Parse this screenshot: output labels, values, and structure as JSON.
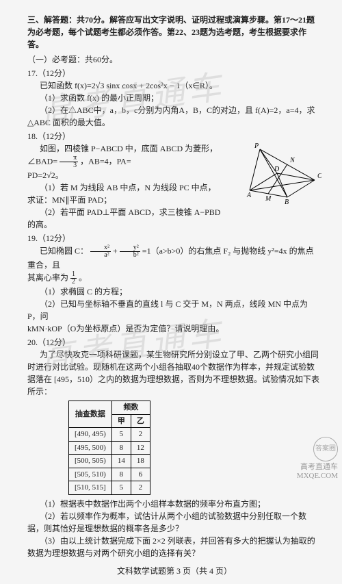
{
  "section3": {
    "heading": "三、解答题：共70分。解答应写出文字说明、证明过程或演算步骤。第17～21题为必考题，每个试题考生都必须作答。第22、23题为选考题，考生根据要求作答。",
    "part1_heading": "（一）必考题：共60分。"
  },
  "q17": {
    "num": "17.（12分）",
    "intro": "已知函数 f(x)=2√3 sinx cosx + 2cos²x − 1（x∈R）。",
    "p1": "（1）求函数 f(x) 的最小正周期；",
    "p2a": "（2）在△ABC中，a，b，c分别为内角A，B，C的对边，且 f(A)=2，a=4，求",
    "p2b": "△ABC 面积的最大值。"
  },
  "q18": {
    "num": "18.（12分）",
    "intro1": "如图，四棱锥 P−ABCD 中，底面 ABCD 为菱形，∠BAD=",
    "intro1_frac_n": "π",
    "intro1_frac_d": "3",
    "intro1b": "，AB=4，PA=",
    "intro2": "PD=2√2。",
    "p1a": "（1）若 M 为线段 AB 中点，N 为线段 PC 中点，",
    "p1b": "求证：MN∥平面 PAD；",
    "p2a": "（2）若平面 PAD⊥平面 ABCD，求三棱锥 A−PBD",
    "p2b": "的高。",
    "diagram": {
      "width": 120,
      "height": 90,
      "points": {
        "A": [
          15,
          70,
          "A"
        ],
        "B": [
          70,
          80,
          "B"
        ],
        "C": [
          110,
          55,
          "C"
        ],
        "D": [
          55,
          45,
          "D"
        ],
        "P": [
          30,
          10,
          "P"
        ],
        "M": [
          42,
          75,
          "M"
        ],
        "N": [
          70,
          32,
          "N"
        ]
      },
      "edges": [
        [
          "A",
          "B"
        ],
        [
          "B",
          "C"
        ],
        [
          "C",
          "D"
        ],
        [
          "D",
          "A"
        ],
        [
          "A",
          "P"
        ],
        [
          "P",
          "D"
        ],
        [
          "P",
          "C"
        ],
        [
          "P",
          "B"
        ],
        [
          "A",
          "C"
        ],
        [
          "B",
          "D"
        ],
        [
          "M",
          "N"
        ]
      ],
      "stroke": "#000"
    }
  },
  "q19": {
    "num": "19.（12分）",
    "intro1": "已知椭圆 C：",
    "ellipse_n": "x²",
    "ellipse_d": "a²",
    "plus": " + ",
    "ellipse2_n": "y²",
    "ellipse2_d": "b²",
    "intro1b": " =1（a>b>0）的右焦点 F₂ 与抛物线 y²=4x 的焦点重合，且",
    "intro2a": "其离心率为 ",
    "ecc_n": "1",
    "ecc_d": "2",
    "intro2b": "。",
    "p1": "（1）求椭圆 C 的方程；",
    "p2a": "（2）已知与坐标轴不垂直的直线 l 与 C 交于 M，N 两点，线段 MN 中点为 P，问",
    "p2b": "kMN·kOP（O为坐标原点）是否为定值？请说明理由。"
  },
  "q20": {
    "num": "20.（12分）",
    "intro1": "为了尽快攻克一项科研课题，某生物研究所分别设立了甲、乙两个研究小组同时进行对比试验。现随机在这两个小组各抽取40个数据作为样本，并规定试验数据落在 [495，510）之内的数据为理想数据，否则为不理想数据。试验情况如下表所示：",
    "table": {
      "header_main": "抽查数据",
      "header_sub": "频数",
      "header_a": "甲",
      "header_b": "乙",
      "rows": [
        {
          "range": "[490, 495)",
          "a": "5",
          "b": "2"
        },
        {
          "range": "[495, 500)",
          "a": "8",
          "b": "12"
        },
        {
          "range": "[500, 505)",
          "a": "14",
          "b": "18"
        },
        {
          "range": "[505, 510)",
          "a": "8",
          "b": "6"
        },
        {
          "range": "[510, 515]",
          "a": "5",
          "b": "2"
        }
      ]
    },
    "p1": "（1）根据表中数据作出两个小组样本数据的频率分布直方图；",
    "p2": "（2）若以频率作为概率，试估计从两个小组的试验数据中分别任取一个数据，则其恰好是理想数据的概率各是多少？",
    "p3": "（3）由以上统计数据完成下面 2×2 列联表，并回答有多大的把握认为抽取的数据为理想数据与对两个研究小组的选择有关？"
  },
  "footer": "文科数学试题第 3 页（共 4 页）",
  "watermarks": {
    "text": "高考直通车",
    "corner1": "答案圈",
    "corner2": "高考直通车",
    "corner3": "MXQE.COM"
  }
}
